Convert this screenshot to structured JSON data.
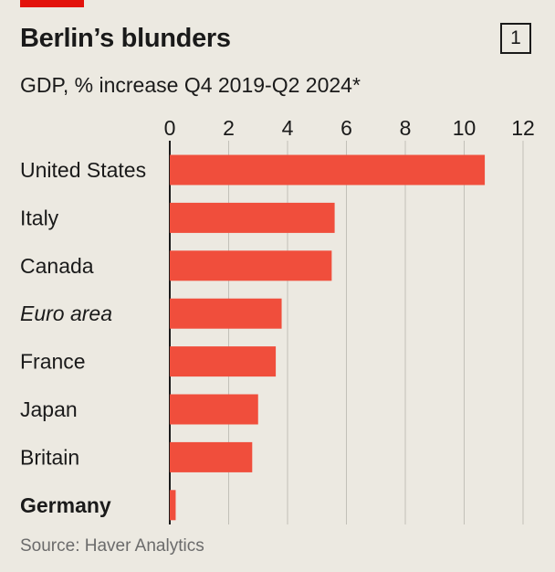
{
  "header": {
    "title": "Berlin’s blunders",
    "chart_number": "1",
    "subtitle": "GDP, % increase Q4 2019-Q2 2024*"
  },
  "footer": {
    "source": "Source: Haver Analytics"
  },
  "colors": {
    "bar": "#f04e3c",
    "tag": "#e3120b",
    "background": "#ece9e1"
  },
  "chart_data": {
    "type": "bar",
    "orientation": "horizontal",
    "title": "Berlin’s blunders",
    "subtitle": "GDP, % increase Q4 2019-Q2 2024*",
    "categories": [
      "United States",
      "Italy",
      "Canada",
      "Euro area",
      "France",
      "Japan",
      "Britain",
      "Germany"
    ],
    "category_styles": [
      "normal",
      "normal",
      "normal",
      "italic",
      "normal",
      "normal",
      "normal",
      "bold"
    ],
    "values": [
      10.7,
      5.6,
      5.5,
      3.8,
      3.6,
      3.0,
      2.8,
      0.2
    ],
    "xticks": [
      "0",
      "2",
      "4",
      "6",
      "8",
      "10",
      "12"
    ],
    "xlim": [
      0,
      12
    ],
    "xaxis_position": "top",
    "grid": true,
    "legend": "none",
    "source": "Source: Haver Analytics"
  }
}
